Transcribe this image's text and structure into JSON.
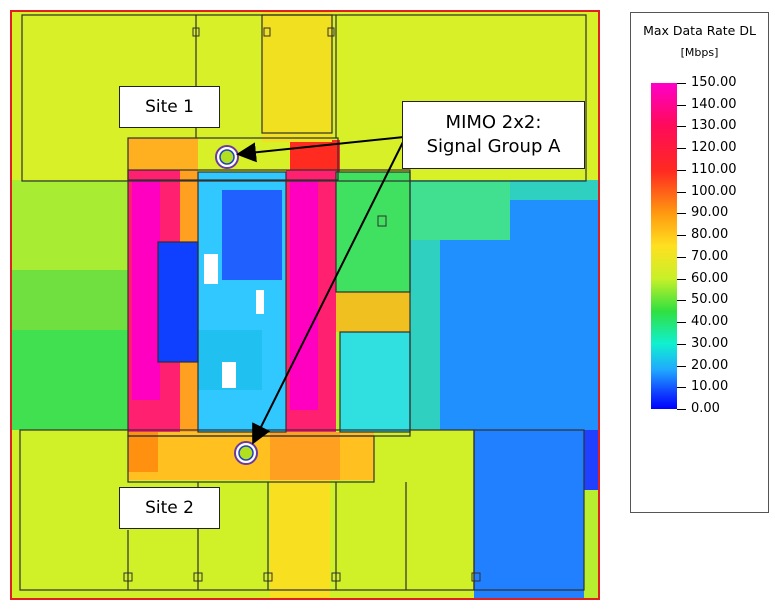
{
  "labels": {
    "site1": "Site 1",
    "site2": "Site 2",
    "mimo_line1": "MIMO 2x2:",
    "mimo_line2": "Signal Group A"
  },
  "legend": {
    "title": "Max Data Rate DL",
    "unit": "[Mbps]",
    "ticks": [
      "150.00",
      "140.00",
      "130.00",
      "120.00",
      "110.00",
      "100.00",
      "90.00",
      "80.00",
      "70.00",
      "60.00",
      "50.00",
      "40.00",
      "30.00",
      "20.00",
      "10.00",
      "0.00"
    ],
    "range": [
      0,
      150
    ]
  },
  "colors": {
    "border": "#e02020",
    "wall": "#303030",
    "scale_150": "#ff00c8",
    "scale_120": "#ff2a20",
    "scale_90": "#ffe020",
    "scale_60": "#30e040",
    "scale_30": "#10f0d0",
    "scale_0": "#0000ff"
  }
}
